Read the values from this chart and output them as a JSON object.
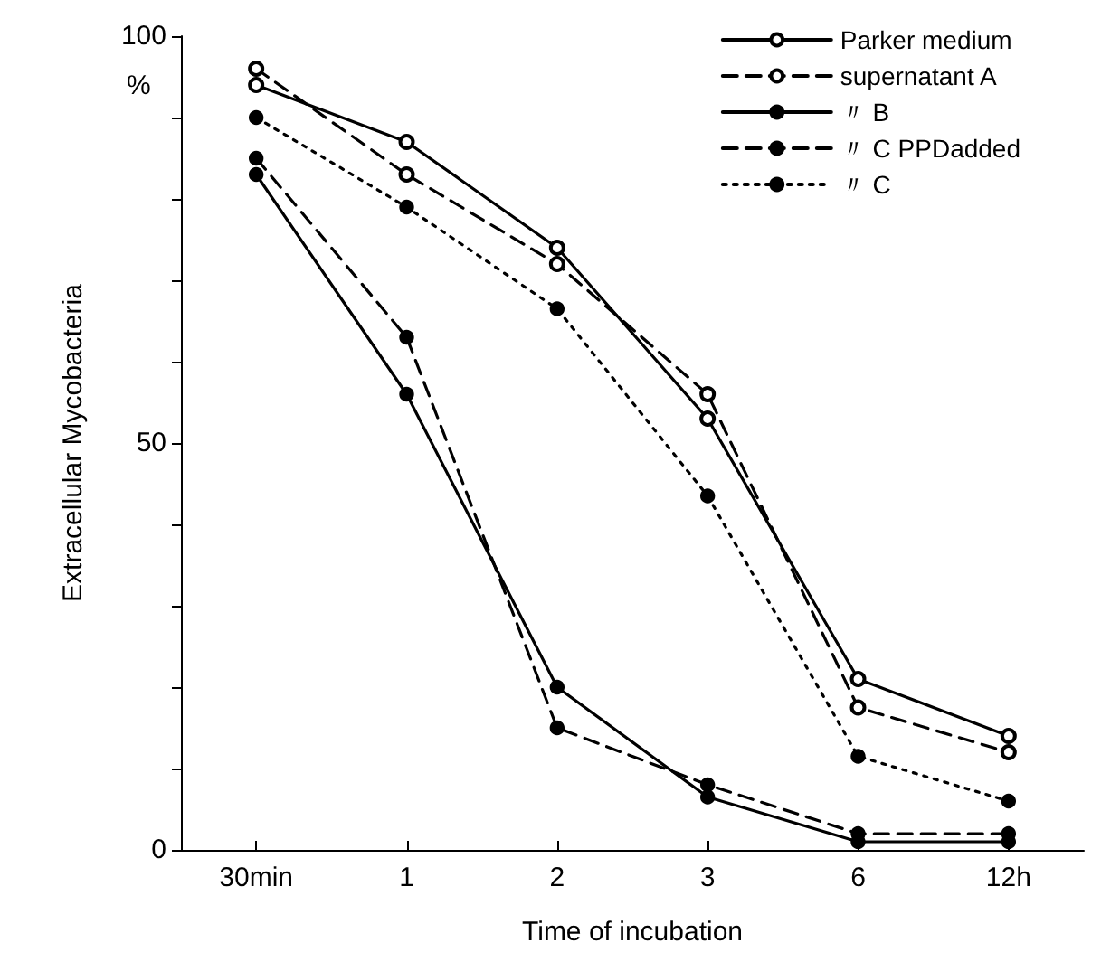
{
  "chart_data": {
    "type": "line",
    "xlabel": "Time of incubation",
    "ylabel": "Extracellular Mycobacteria",
    "annotations": [
      "%"
    ],
    "categories": [
      "30min",
      "1",
      "2",
      "3",
      "6",
      "12h"
    ],
    "ylim": [
      0,
      100
    ],
    "yticks": [
      0,
      {
        "value": 10,
        "label": null
      },
      {
        "value": 20,
        "label": null
      },
      {
        "value": 30,
        "label": null
      },
      {
        "value": 40,
        "label": null
      },
      50,
      {
        "value": 60,
        "label": null
      },
      {
        "value": 70,
        "label": null
      },
      {
        "value": 80,
        "label": null
      },
      {
        "value": 90,
        "label": null
      },
      100
    ],
    "grid": false,
    "legend": "top right",
    "marker": "circle",
    "series": [
      {
        "name": "Parker medium",
        "color": "#000000",
        "marker": "open circle",
        "line_style": "solid",
        "values": [
          94,
          87,
          74,
          53,
          21,
          14
        ]
      },
      {
        "name": "supernatant A",
        "color": "#000000",
        "marker": "open circle",
        "line_style": "dashed",
        "values": [
          96,
          83,
          72,
          56,
          17.5,
          12
        ]
      },
      {
        "name": "〃 B",
        "color": "#000000",
        "line_style": "solid",
        "values": [
          83,
          56,
          20,
          6.5,
          1,
          1
        ]
      },
      {
        "name": "〃 C PPDadded",
        "color": "#000000",
        "line_style": "dashed",
        "values": [
          85,
          63,
          15,
          8,
          2,
          2
        ]
      },
      {
        "name": "〃 C",
        "color": "#000000",
        "line_style": "dotted",
        "values": [
          90,
          79,
          66.5,
          43.5,
          11.5,
          6
        ]
      }
    ]
  }
}
